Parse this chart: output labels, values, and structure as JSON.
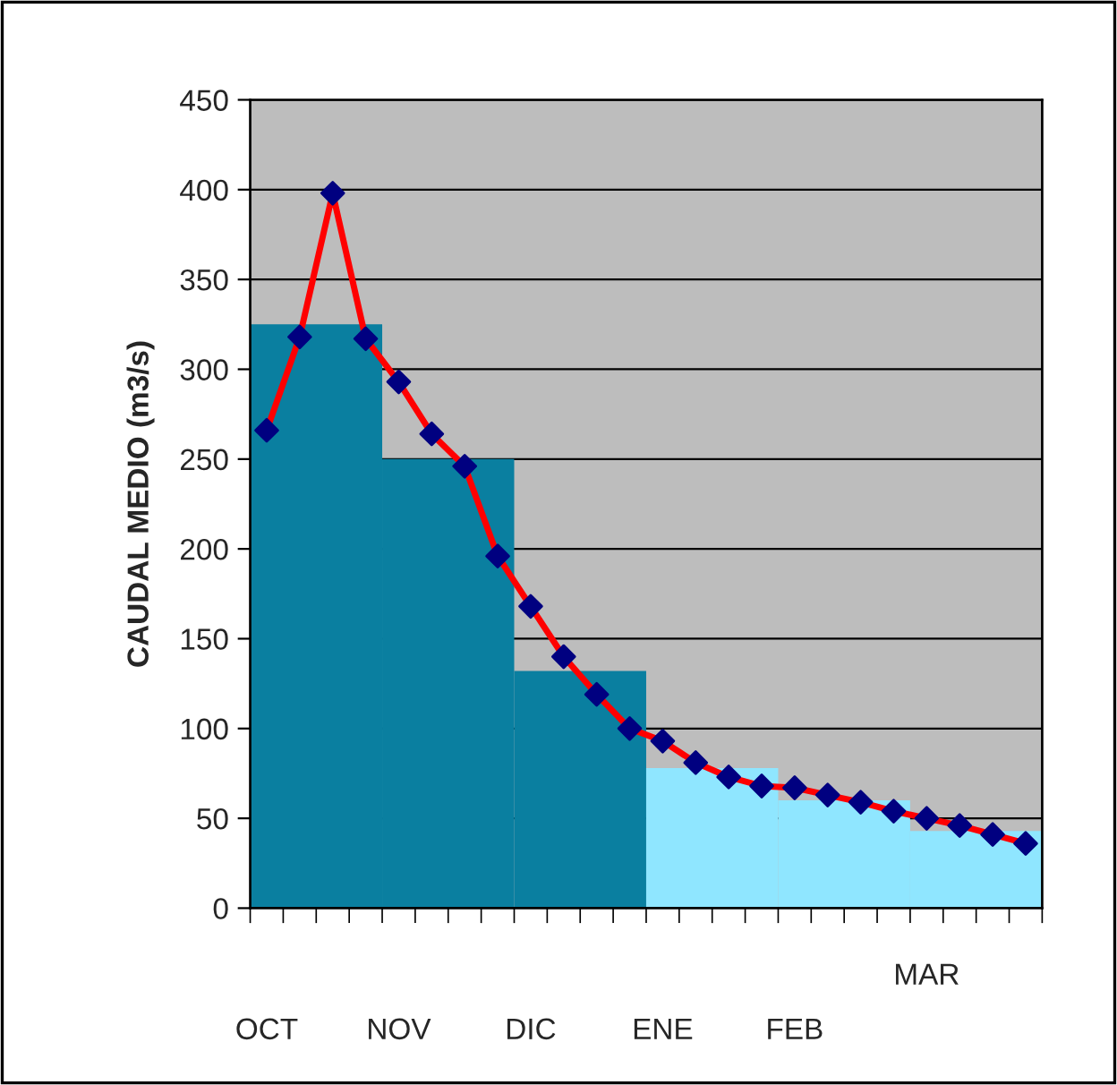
{
  "chart_data": [
    {
      "type": "bar",
      "ylabel": "CAUDAL MEDIO (m3/s)",
      "categories": [
        "OCT",
        "NOV",
        "DIC",
        "ENE",
        "FEB",
        "MAR"
      ],
      "series": [
        {
          "values": [
            325,
            250,
            132,
            78,
            60,
            43
          ],
          "colors": [
            "#0a7fa0",
            "#0a7fa0",
            "#0a7fa0",
            "#8fe6ff",
            "#8fe6ff",
            "#8fe6ff"
          ]
        }
      ],
      "ylim": [
        0,
        450
      ],
      "yticks": [
        0,
        50,
        100,
        150,
        200,
        250,
        300,
        350,
        400,
        450
      ],
      "grid": "y"
    },
    {
      "type": "line",
      "categories": [
        null,
        null,
        null,
        null,
        null,
        null,
        null,
        null,
        null,
        null,
        null,
        null,
        null,
        null,
        null,
        null,
        null,
        null,
        null,
        null,
        null,
        null,
        null,
        null
      ],
      "series": [
        {
          "color": "#ff0000",
          "values": [
            266,
            318,
            398,
            317,
            293,
            264,
            246,
            196,
            168,
            140,
            119,
            100,
            93,
            81,
            73,
            68,
            67,
            63,
            59,
            54,
            50,
            46,
            41,
            36
          ],
          "colors": [
            "#000080",
            "#000080",
            "#000080",
            "#000080",
            "#000080",
            "#000080",
            "#000080",
            "#000080",
            "#000080",
            "#000080",
            "#000080",
            "#000080",
            "#000080",
            "#000080",
            "#000080",
            "#000080",
            "#000080",
            "#000080",
            "#000080",
            "#000080",
            "#000080",
            "#000080",
            "#000080",
            "#000080"
          ]
        }
      ],
      "marker": "diamond",
      "ylim": [
        0,
        450
      ],
      "tick_labels": false
    }
  ]
}
